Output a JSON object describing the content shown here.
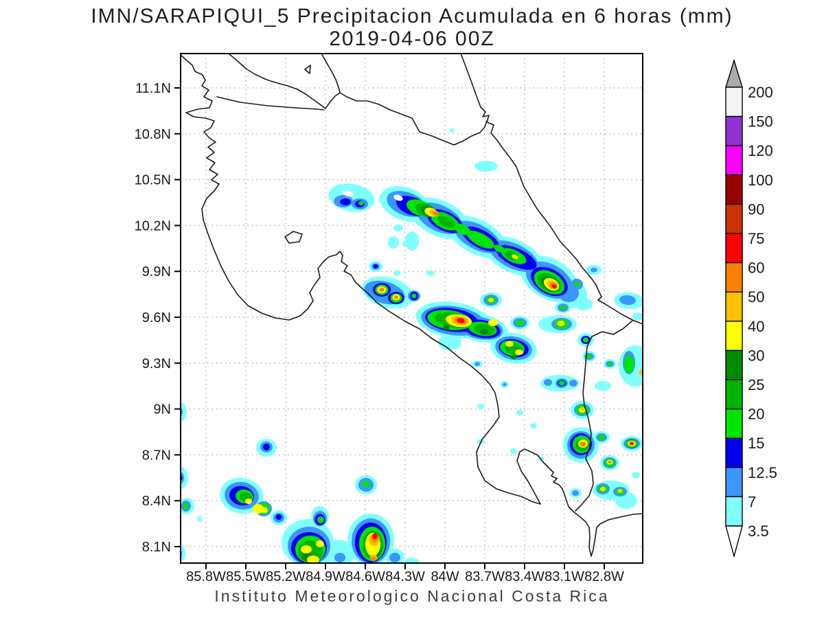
{
  "title": {
    "line1": "IMN/SARAPIQUI_5 Precipitacion Acumulada en 6 horas (mm)",
    "line2": "2019-04-06 00Z"
  },
  "footer": "Instituto Meteorologico Nacional Costa Rica",
  "chart_data": {
    "type": "heatmap",
    "subtype": "filled-contour precipitation map (GrADS style)",
    "region": "Costa Rica",
    "variable": "6-hour accumulated precipitation",
    "units": "mm",
    "valid_time": "2019-04-06 00Z",
    "model": "IMN/SARAPIQUI_5",
    "grid": "dotted graticule every 0.3 degrees",
    "x_axis": {
      "ticks": [
        "85.8W",
        "85.5W",
        "85.2W",
        "84.9W",
        "84.6W",
        "84.3W",
        "84W",
        "83.7W",
        "83.4W",
        "83.1W",
        "82.8W"
      ],
      "range_lon_w": [
        86.0,
        82.5
      ]
    },
    "y_axis": {
      "ticks": [
        "11.1N",
        "10.8N",
        "10.5N",
        "10.2N",
        "9.9N",
        "9.6N",
        "9.3N",
        "9N",
        "8.7N",
        "8.4N",
        "8.1N"
      ],
      "range_lat_n": [
        8.0,
        11.32
      ]
    },
    "colorbar": {
      "orientation": "vertical",
      "position": "right",
      "labels": [
        "200",
        "150",
        "120",
        "100",
        "90",
        "75",
        "60",
        "50",
        "40",
        "30",
        "25",
        "20",
        "15",
        "12.5",
        "7",
        "3.5"
      ],
      "segments": [
        {
          "range": "150-200",
          "color": "#F4F4F4"
        },
        {
          "range": "120-150",
          "color": "#9232D2"
        },
        {
          "range": "100-120",
          "color": "#FF00FF"
        },
        {
          "range": "90-100",
          "color": "#990000"
        },
        {
          "range": "75-90",
          "color": "#CC3300"
        },
        {
          "range": "60-75",
          "color": "#FF0000"
        },
        {
          "range": "50-60",
          "color": "#FF8000"
        },
        {
          "range": "40-50",
          "color": "#FFC000"
        },
        {
          "range": "30-40",
          "color": "#FFFF00"
        },
        {
          "range": "25-30",
          "color": "#008A00"
        },
        {
          "range": "20-25",
          "color": "#00B400"
        },
        {
          "range": "15-20",
          "color": "#00E400"
        },
        {
          "range": "12.5-15",
          "color": "#0000F0"
        },
        {
          "range": "7-12.5",
          "color": "#3C96FF"
        },
        {
          "range": "3.5-7",
          "color": "#80FFFF"
        }
      ],
      "above_max_arrow_color": "#ABABAB",
      "below_min_arrow_color": "#FFFFFF"
    },
    "pattern_summary": "NW-SE oriented band of convective cells over the Caribbean slope and northern mountains, scattered strong cells in the central valley, clusters near the Panama border, and a line of cells along/off the southern Pacific coast.",
    "storm_cells": [
      {
        "lon_w": 84.7,
        "lat_n": 10.38,
        "peak_mm": "15-20"
      },
      {
        "lon_w": 84.1,
        "lat_n": 10.29,
        "peak_mm": "50-60"
      },
      {
        "lon_w": 83.2,
        "lat_n": 9.82,
        "peak_mm": "60-75"
      },
      {
        "lon_w": 84.45,
        "lat_n": 9.77,
        "peak_mm": "50-60"
      },
      {
        "lon_w": 83.9,
        "lat_n": 9.57,
        "peak_mm": "60-75"
      },
      {
        "lon_w": 83.5,
        "lat_n": 9.39,
        "peak_mm": "40-50"
      },
      {
        "lon_w": 83.1,
        "lat_n": 9.55,
        "peak_mm": "30-40"
      },
      {
        "lon_w": 82.97,
        "lat_n": 8.77,
        "peak_mm": "50-60"
      },
      {
        "lon_w": 82.6,
        "lat_n": 8.77,
        "peak_mm": "60-75"
      },
      {
        "lon_w": 82.76,
        "lat_n": 8.64,
        "peak_mm": "50-60"
      },
      {
        "lon_w": 85.57,
        "lat_n": 8.43,
        "peak_mm": "30-40"
      },
      {
        "lon_w": 84.53,
        "lat_n": 8.16,
        "peak_mm": "60-75"
      },
      {
        "lon_w": 85.0,
        "lat_n": 8.1,
        "peak_mm": "30-40"
      },
      {
        "lon_w": 85.35,
        "lat_n": 8.75,
        "peak_mm": "12.5-15"
      }
    ]
  }
}
